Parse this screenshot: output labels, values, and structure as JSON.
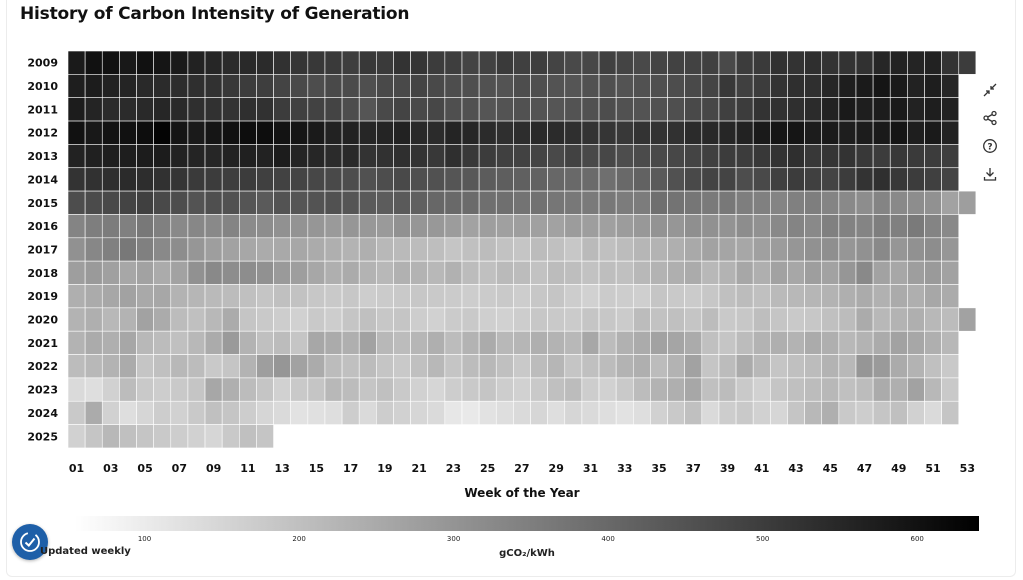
{
  "title": "History of Carbon Intensity of Generation",
  "footer_note": "Updated weekly",
  "toolbar": {
    "icons": [
      "collapse-icon",
      "share-icon",
      "help-icon",
      "download-icon"
    ]
  },
  "chart_data": {
    "type": "heatmap",
    "title": "History of Carbon Intensity of Generation",
    "xlabel": "Week of the Year",
    "ylabel": "",
    "x_tick_labels": [
      "01",
      "03",
      "05",
      "07",
      "09",
      "11",
      "13",
      "15",
      "17",
      "19",
      "21",
      "23",
      "25",
      "27",
      "29",
      "31",
      "33",
      "35",
      "37",
      "39",
      "41",
      "43",
      "45",
      "47",
      "49",
      "51",
      "53"
    ],
    "years": [
      "2009",
      "2010",
      "2011",
      "2012",
      "2013",
      "2014",
      "2015",
      "2016",
      "2017",
      "2018",
      "2019",
      "2020",
      "2021",
      "2022",
      "2023",
      "2024",
      "2025"
    ],
    "weeks": 53,
    "colorbar": {
      "label": "gCO₂/kWh",
      "ticks": [
        100,
        200,
        300,
        400,
        500,
        600
      ],
      "range": [
        55,
        640
      ],
      "low_color": "#ffffff",
      "high_color": "#000000"
    },
    "values": {
      "2009": [
        580,
        600,
        600,
        585,
        600,
        590,
        580,
        560,
        550,
        540,
        545,
        540,
        525,
        515,
        510,
        505,
        495,
        510,
        505,
        520,
        515,
        500,
        495,
        480,
        485,
        505,
        490,
        495,
        480,
        470,
        475,
        490,
        480,
        470,
        480,
        485,
        485,
        490,
        470,
        500,
        505,
        525,
        520,
        530,
        520,
        520,
        525,
        550,
        560,
        555,
        560,
        520,
        500
      ],
      "2010": [
        570,
        575,
        560,
        555,
        545,
        540,
        535,
        530,
        525,
        510,
        500,
        495,
        480,
        470,
        460,
        470,
        465,
        455,
        470,
        470,
        480,
        470,
        460,
        455,
        450,
        445,
        460,
        455,
        445,
        440,
        450,
        455,
        445,
        450,
        455,
        460,
        470,
        480,
        510,
        490,
        500,
        520,
        530,
        530,
        550,
        570,
        580,
        590,
        580,
        560,
        570,
        550,
        null
      ],
      "2011": [
        575,
        555,
        540,
        540,
        545,
        550,
        545,
        530,
        525,
        520,
        530,
        525,
        500,
        490,
        485,
        480,
        460,
        440,
        470,
        480,
        470,
        475,
        455,
        450,
        440,
        445,
        450,
        445,
        440,
        445,
        450,
        460,
        450,
        445,
        450,
        455,
        470,
        475,
        490,
        500,
        520,
        525,
        530,
        540,
        560,
        580,
        570,
        575,
        580,
        560,
        570,
        560,
        null
      ],
      "2012": [
        600,
        585,
        595,
        600,
        610,
        630,
        590,
        580,
        590,
        600,
        610,
        610,
        595,
        590,
        580,
        560,
        560,
        550,
        555,
        560,
        545,
        540,
        555,
        550,
        540,
        530,
        535,
        545,
        540,
        530,
        520,
        515,
        510,
        520,
        520,
        525,
        540,
        545,
        550,
        560,
        580,
        590,
        590,
        575,
        580,
        570,
        575,
        580,
        590,
        570,
        580,
        560,
        null
      ],
      "2013": [
        560,
        565,
        570,
        570,
        575,
        575,
        560,
        555,
        550,
        560,
        565,
        560,
        575,
        555,
        550,
        540,
        545,
        520,
        525,
        530,
        520,
        510,
        530,
        510,
        500,
        490,
        485,
        480,
        470,
        485,
        470,
        475,
        460,
        465,
        470,
        475,
        480,
        490,
        500,
        500,
        510,
        520,
        530,
        510,
        515,
        520,
        510,
        500,
        510,
        505,
        500,
        495,
        null
      ],
      "2014": [
        520,
        525,
        530,
        540,
        535,
        525,
        515,
        505,
        500,
        495,
        500,
        490,
        485,
        480,
        475,
        470,
        460,
        450,
        460,
        470,
        455,
        450,
        440,
        435,
        425,
        420,
        415,
        410,
        400,
        395,
        390,
        380,
        395,
        410,
        430,
        450,
        470,
        480,
        480,
        460,
        470,
        490,
        500,
        490,
        480,
        500,
        520,
        530,
        510,
        500,
        490,
        480,
        null
      ],
      "2015": [
        460,
        465,
        470,
        480,
        490,
        470,
        460,
        445,
        455,
        450,
        440,
        430,
        445,
        440,
        445,
        450,
        440,
        430,
        425,
        430,
        415,
        400,
        395,
        390,
        380,
        380,
        370,
        375,
        365,
        360,
        355,
        360,
        350,
        350,
        380,
        370,
        365,
        355,
        360,
        345,
        340,
        330,
        340,
        345,
        330,
        320,
        310,
        330,
        320,
        310,
        300,
        260,
        270
      ],
      "2016": [
        330,
        345,
        350,
        340,
        360,
        340,
        320,
        325,
        320,
        330,
        315,
        310,
        300,
        295,
        290,
        280,
        290,
        285,
        280,
        300,
        290,
        285,
        275,
        260,
        270,
        265,
        270,
        265,
        260,
        275,
        270,
        265,
        275,
        285,
        295,
        290,
        305,
        300,
        295,
        310,
        300,
        320,
        330,
        320,
        340,
        335,
        330,
        345,
        340,
        355,
        330,
        320,
        null
      ],
      "2017": [
        300,
        325,
        340,
        360,
        340,
        320,
        310,
        290,
        270,
        260,
        250,
        240,
        245,
        250,
        240,
        230,
        220,
        230,
        210,
        205,
        200,
        195,
        180,
        190,
        200,
        185,
        180,
        200,
        190,
        175,
        205,
        190,
        200,
        215,
        220,
        230,
        245,
        260,
        255,
        250,
        265,
        275,
        290,
        300,
        305,
        290,
        300,
        320,
        290,
        300,
        310,
        290,
        null
      ],
      "2018": [
        270,
        280,
        265,
        250,
        260,
        240,
        260,
        300,
        320,
        310,
        310,
        300,
        280,
        270,
        250,
        230,
        240,
        220,
        210,
        225,
        220,
        210,
        225,
        200,
        190,
        205,
        200,
        185,
        200,
        195,
        185,
        195,
        190,
        210,
        220,
        230,
        240,
        210,
        220,
        250,
        230,
        260,
        250,
        270,
        260,
        290,
        320,
        260,
        250,
        270,
        280,
        260,
        null
      ],
      "2019": [
        230,
        240,
        250,
        260,
        245,
        250,
        220,
        215,
        205,
        200,
        190,
        180,
        190,
        185,
        175,
        170,
        175,
        160,
        165,
        170,
        175,
        170,
        165,
        160,
        165,
        170,
        160,
        175,
        180,
        160,
        150,
        165,
        160,
        155,
        180,
        170,
        165,
        175,
        190,
        200,
        190,
        205,
        210,
        215,
        220,
        230,
        240,
        225,
        240,
        230,
        250,
        240,
        null
      ],
      "2020": [
        220,
        230,
        210,
        220,
        260,
        240,
        200,
        190,
        210,
        240,
        180,
        170,
        160,
        150,
        170,
        160,
        180,
        190,
        175,
        180,
        160,
        150,
        165,
        170,
        155,
        150,
        160,
        175,
        170,
        165,
        180,
        175,
        165,
        200,
        185,
        190,
        180,
        200,
        170,
        175,
        195,
        180,
        170,
        175,
        190,
        200,
        240,
        210,
        220,
        230,
        210,
        200,
        260
      ],
      "2021": [
        220,
        240,
        230,
        250,
        210,
        200,
        190,
        210,
        240,
        280,
        220,
        190,
        200,
        180,
        250,
        240,
        230,
        260,
        210,
        200,
        215,
        230,
        200,
        220,
        240,
        210,
        215,
        230,
        220,
        210,
        250,
        200,
        225,
        240,
        260,
        255,
        240,
        190,
        180,
        200,
        220,
        230,
        220,
        240,
        230,
        210,
        220,
        240,
        260,
        250,
        230,
        210,
        null
      ],
      "2022": [
        200,
        210,
        220,
        240,
        180,
        190,
        210,
        200,
        170,
        180,
        220,
        270,
        290,
        260,
        240,
        200,
        190,
        200,
        180,
        170,
        190,
        210,
        180,
        200,
        210,
        190,
        170,
        200,
        215,
        180,
        190,
        200,
        220,
        230,
        200,
        220,
        260,
        180,
        200,
        240,
        210,
        180,
        190,
        200,
        220,
        210,
        290,
        280,
        240,
        220,
        190,
        170,
        null
      ],
      "2023": [
        130,
        120,
        150,
        200,
        170,
        160,
        170,
        180,
        250,
        230,
        200,
        180,
        150,
        170,
        180,
        210,
        200,
        180,
        190,
        170,
        150,
        140,
        160,
        170,
        180,
        160,
        150,
        170,
        190,
        200,
        160,
        150,
        170,
        200,
        220,
        230,
        250,
        190,
        200,
        170,
        150,
        180,
        190,
        200,
        210,
        190,
        200,
        240,
        230,
        260,
        210,
        170,
        null
      ],
      "2024": [
        170,
        240,
        150,
        120,
        140,
        160,
        150,
        170,
        190,
        180,
        160,
        140,
        130,
        110,
        115,
        120,
        160,
        130,
        160,
        150,
        140,
        130,
        100,
        95,
        110,
        120,
        130,
        140,
        120,
        140,
        130,
        120,
        110,
        120,
        150,
        170,
        190,
        130,
        160,
        170,
        150,
        140,
        180,
        210,
        230,
        170,
        160,
        180,
        190,
        150,
        130,
        180,
        null
      ],
      "2025": [
        150,
        180,
        210,
        190,
        180,
        170,
        160,
        150,
        140,
        170,
        190,
        180,
        null,
        null,
        null,
        null,
        null,
        null,
        null,
        null,
        null,
        null,
        null,
        null,
        null,
        null,
        null,
        null,
        null,
        null,
        null,
        null,
        null,
        null,
        null,
        null,
        null,
        null,
        null,
        null,
        null,
        null,
        null,
        null,
        null,
        null,
        null,
        null,
        null,
        null,
        null,
        null,
        null
      ]
    }
  }
}
